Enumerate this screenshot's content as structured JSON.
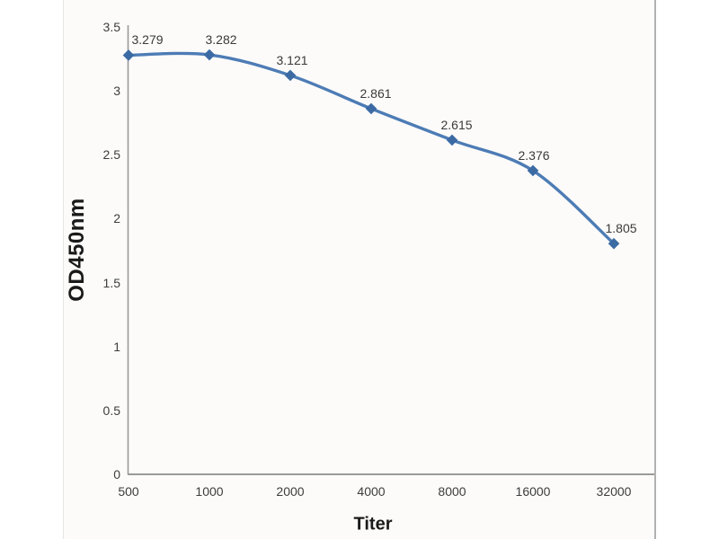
{
  "chart_data": {
    "type": "line",
    "title": "",
    "xlabel": "Titer",
    "ylabel": "OD450nm",
    "categories": [
      "500",
      "1000",
      "2000",
      "4000",
      "8000",
      "16000",
      "32000"
    ],
    "series": [
      {
        "name": "OD450nm",
        "values": [
          3.279,
          3.282,
          3.121,
          2.861,
          2.615,
          2.376,
          1.805
        ]
      }
    ],
    "data_labels": [
      "3.279",
      "3.282",
      "3.121",
      "2.861",
      "2.615",
      "2.376",
      "1.805"
    ],
    "y_ticks": [
      "0",
      "0.5",
      "1",
      "1.5",
      "2",
      "2.5",
      "3",
      "3.5"
    ],
    "y_tick_values": [
      0,
      0.5,
      1,
      1.5,
      2,
      2.5,
      3,
      3.5
    ],
    "ylim": [
      0,
      3.5
    ],
    "grid": "off",
    "legend": "none",
    "line_smooth": true,
    "marker": "diamond",
    "colors": {
      "line": "#4d7cb5",
      "marker": "#3c6ba4",
      "axis": "#9a9a9a",
      "text": "#3a3a3a",
      "panel_bg": "#fcfbfa",
      "panel_border": "#b1b1b1"
    }
  }
}
